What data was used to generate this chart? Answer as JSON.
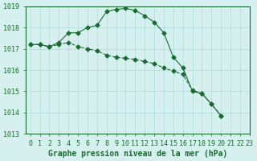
{
  "title": "Graphe pression niveau de la mer (hPa)",
  "background_color": "#d6f0ef",
  "grid_color": "#aadddd",
  "line_color": "#1a6b30",
  "line1": {
    "x": [
      0,
      1,
      2,
      3,
      4,
      5,
      6,
      7,
      8,
      9,
      10,
      11,
      12,
      13,
      14,
      15,
      16,
      17,
      18,
      19,
      20,
      21,
      22,
      23
    ],
    "y": [
      1017.2,
      1017.2,
      1017.1,
      1017.3,
      1017.75,
      1017.75,
      1018.0,
      1018.1,
      1018.75,
      1018.85,
      1018.9,
      1018.8,
      1018.55,
      1018.25,
      1017.75,
      1016.6,
      1016.1,
      1015.0,
      1014.9,
      1014.4,
      1013.85,
      null,
      null,
      null
    ]
  },
  "line2": {
    "x": [
      0,
      1,
      2,
      3,
      4,
      5,
      6,
      7,
      8,
      9,
      10,
      11,
      12,
      13,
      14,
      15,
      16,
      17,
      18,
      19,
      20,
      21,
      22,
      23
    ],
    "y": [
      1017.2,
      1017.2,
      1017.1,
      1017.2,
      1017.3,
      1017.1,
      1017.0,
      1016.9,
      1016.7,
      1016.6,
      1016.55,
      1016.5,
      1016.4,
      1016.3,
      1016.1,
      1015.95,
      1015.8,
      1015.05,
      1014.9,
      1014.4,
      1013.85,
      null,
      null,
      null
    ]
  },
  "ylim": [
    1013,
    1019
  ],
  "yticks": [
    1013,
    1014,
    1015,
    1016,
    1017,
    1018,
    1019
  ],
  "xticks": [
    0,
    1,
    2,
    3,
    4,
    5,
    6,
    7,
    8,
    9,
    10,
    11,
    12,
    13,
    14,
    15,
    16,
    17,
    18,
    19,
    20,
    21,
    22,
    23
  ],
  "xlabel_fontsize": 7,
  "ylabel_fontsize": 7,
  "title_fontsize": 7
}
